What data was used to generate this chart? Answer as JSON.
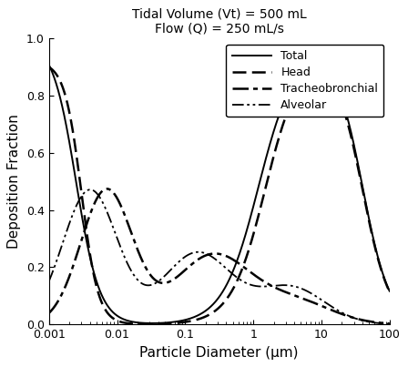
{
  "title_line1": "Tidal Volume (Vt) = 500 mL",
  "title_line2": "Flow (Q) = 250 mL/s",
  "xlabel": "Particle Diameter (μm)",
  "ylabel": "Deposition Fraction",
  "xlim": [
    0.001,
    100
  ],
  "ylim": [
    0.0,
    1.0
  ],
  "yticks": [
    0,
    0.2,
    0.4,
    0.6,
    0.8,
    1.0
  ],
  "xticks": [
    0.001,
    0.01,
    0.1,
    1,
    10,
    100
  ],
  "legend_labels": [
    "Total",
    "Head",
    "Tracheobronchial",
    "Alveolar"
  ],
  "background_color": "#ffffff",
  "title_fontsize": 10,
  "label_fontsize": 11,
  "tick_fontsize": 9,
  "legend_fontsize": 9
}
